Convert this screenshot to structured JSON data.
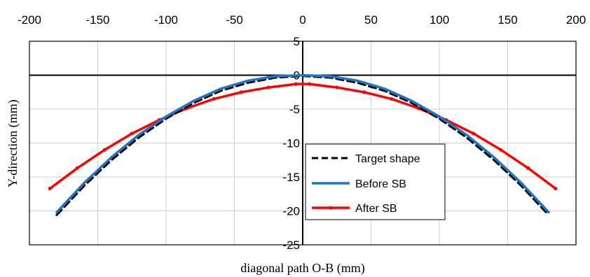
{
  "chart_data": {
    "type": "line",
    "title": "",
    "xlabel": "diagonal path O-B (mm)",
    "ylabel": "Y-direction (mm)",
    "xlim": [
      -200,
      200
    ],
    "ylim": [
      -25,
      5
    ],
    "x_ticks": [
      -200,
      -150,
      -100,
      -50,
      0,
      50,
      100,
      150,
      200
    ],
    "y_ticks": [
      5,
      0,
      -5,
      -10,
      -15,
      -20,
      -25
    ],
    "grid": true,
    "legend_position": "lower-center",
    "series": [
      {
        "name": "Target shape",
        "color": "#000000",
        "style": "dashed",
        "x": [
          -180,
          -160,
          -140,
          -120,
          -100,
          -80,
          -60,
          -40,
          -20,
          0,
          20,
          40,
          60,
          80,
          100,
          120,
          140,
          160,
          180
        ],
        "y": [
          -20.6,
          -16.3,
          -12.5,
          -9.2,
          -6.4,
          -4.1,
          -2.3,
          -1.1,
          -0.35,
          -0.1,
          -0.35,
          -1.1,
          -2.3,
          -4.1,
          -6.4,
          -9.2,
          -12.5,
          -16.3,
          -20.6
        ]
      },
      {
        "name": "Before SB",
        "color": "#1f77c4",
        "style": "solid",
        "x": [
          -180,
          -160,
          -140,
          -120,
          -100,
          -80,
          -60,
          -40,
          -20,
          0,
          20,
          40,
          60,
          80,
          100,
          120,
          140,
          160,
          180
        ],
        "y": [
          -20.2,
          -15.9,
          -12.1,
          -8.8,
          -6.1,
          -3.8,
          -2.0,
          -0.8,
          -0.15,
          0.0,
          -0.15,
          -0.8,
          -2.0,
          -3.8,
          -6.1,
          -8.8,
          -12.1,
          -15.9,
          -20.2
        ]
      },
      {
        "name": "After SB",
        "color": "#ff0000",
        "style": "solid-markers",
        "x": [
          -185,
          -165,
          -145,
          -125,
          -105,
          -85,
          -65,
          -45,
          -25,
          -5,
          0,
          5,
          25,
          45,
          65,
          85,
          105,
          125,
          145,
          165,
          185
        ],
        "y": [
          -16.7,
          -13.7,
          -11.0,
          -8.6,
          -6.6,
          -4.9,
          -3.5,
          -2.5,
          -1.8,
          -1.3,
          -1.3,
          -1.3,
          -1.8,
          -2.5,
          -3.5,
          -4.9,
          -6.6,
          -8.6,
          -11.0,
          -13.7,
          -16.7
        ]
      }
    ]
  }
}
